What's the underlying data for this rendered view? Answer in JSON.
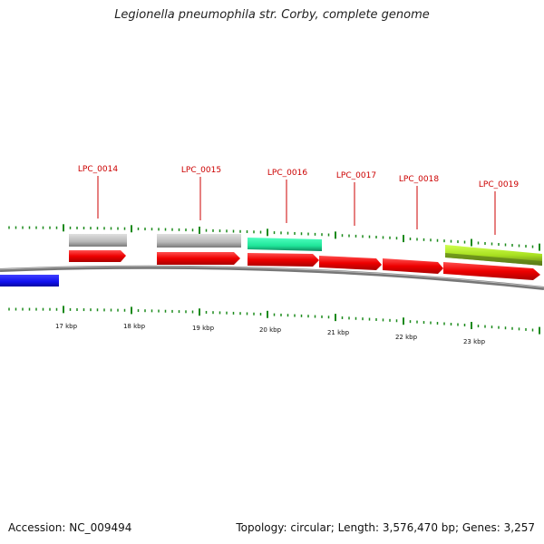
{
  "title": "Legionella pneumophila str. Corby, complete genome",
  "footer": {
    "accession": "Accession: NC_009494",
    "summary": "Topology: circular; Length: 3,576,470 bp; Genes: 3,257"
  },
  "gene_labels": [
    "LPC_0014",
    "LPC_0015",
    "LPC_0016",
    "LPC_0017",
    "LPC_0018",
    "LPC_0019"
  ],
  "scale_labels": [
    "17 kbp",
    "18 kbp",
    "19 kbp",
    "20 kbp",
    "21 kbp",
    "22 kbp",
    "23 kbp"
  ],
  "colors": {
    "cds": "#ff0000",
    "gene_gray": "#b8b8b8",
    "gene_teal": "#1fe69a",
    "gene_lime": "#a8e020",
    "gene_olive": "#6a8a20",
    "feature_blue": "#1010ee",
    "backbone": "#888888",
    "tick": "#1a8a1a",
    "label": "#cc0000"
  }
}
